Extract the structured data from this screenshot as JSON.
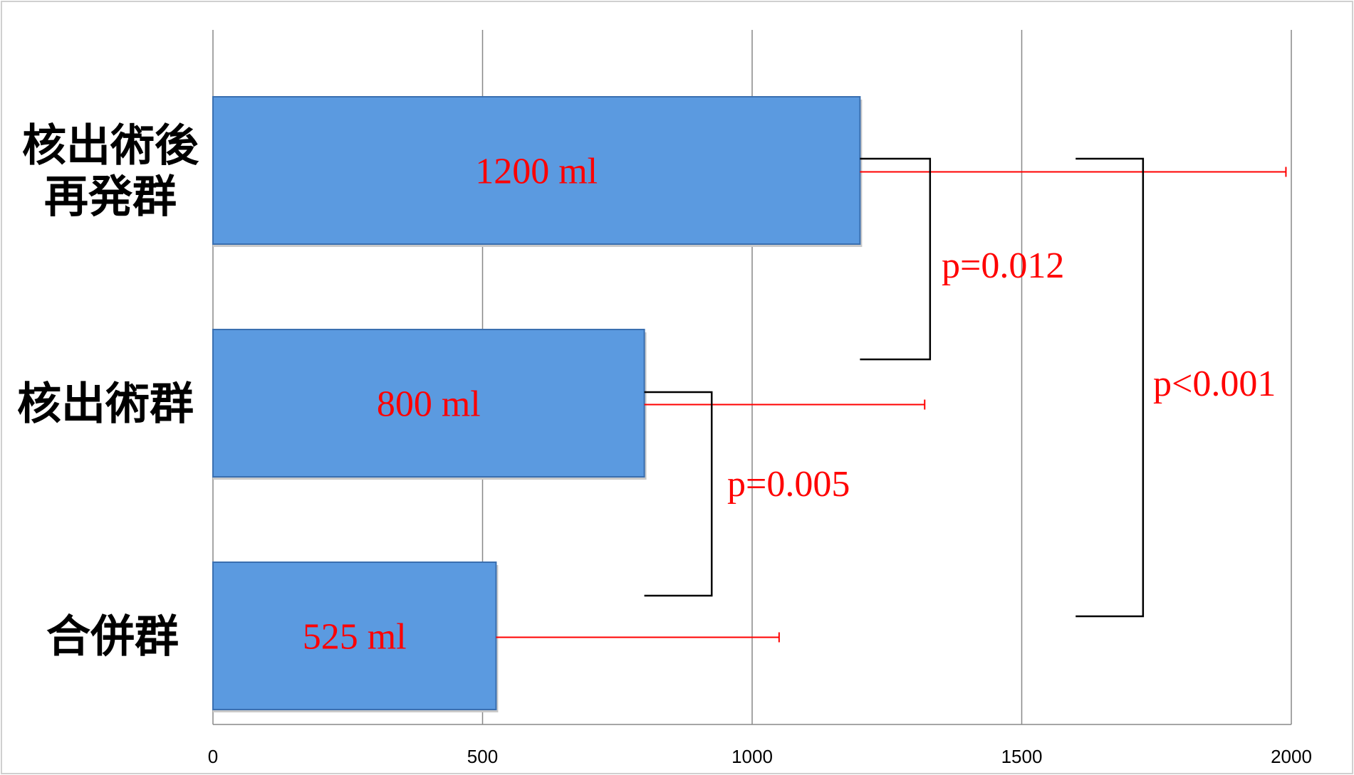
{
  "chart_data": {
    "type": "bar",
    "orientation": "horizontal",
    "categories": [
      [
        "核出術後",
        "再発群"
      ],
      [
        "核出術群"
      ],
      [
        "合併群"
      ]
    ],
    "values": [
      1200,
      800,
      525
    ],
    "data_labels": [
      "1200 ml",
      "800 ml",
      "525 ml"
    ],
    "error_upper": [
      1990,
      1320,
      1050
    ],
    "xlim": [
      0,
      2000
    ],
    "x_ticks": [
      0,
      500,
      1000,
      1500,
      2000
    ],
    "x_tick_labels": [
      "0",
      "500",
      "1000",
      "1500",
      "2000"
    ],
    "grid": true,
    "significance": [
      {
        "between": [
          0,
          1
        ],
        "label": "p=0.012",
        "x_from": 1200,
        "x_to": 1330
      },
      {
        "between": [
          1,
          2
        ],
        "label": "p=0.005",
        "x_from": 800,
        "x_to": 925
      },
      {
        "between": [
          0,
          2
        ],
        "label": "p<0.001",
        "x_from": 1600,
        "x_to": 1725
      }
    ],
    "colors": {
      "bar": "#5b9ae0",
      "bar_edge": "#3a6fb0",
      "error_bar": "#ff0000",
      "data_label": "#ff0000",
      "bracket": "#000000",
      "grid": "#888888"
    }
  }
}
